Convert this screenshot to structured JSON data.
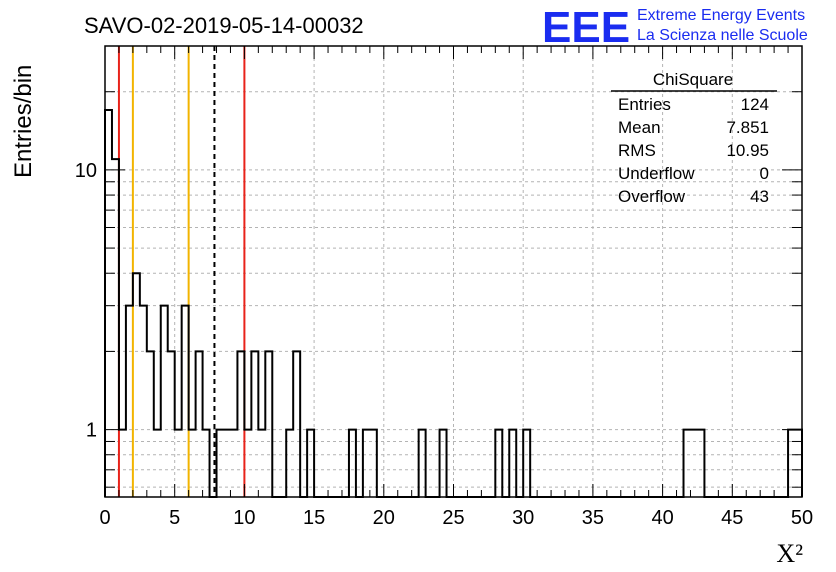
{
  "chart_data": {
    "type": "histogram",
    "title": "SAVO-02-2019-05-14-00032",
    "xlabel": "X²",
    "ylabel": "Entries/bin",
    "xlim": [
      0,
      50
    ],
    "ylim": [
      0.55,
      30
    ],
    "yscale": "log",
    "grid": true,
    "bin_width": 0.5,
    "x_ticks": [
      0,
      5,
      10,
      15,
      20,
      25,
      30,
      35,
      40,
      45,
      50
    ],
    "y_ticks": [
      1,
      10
    ],
    "bins": [
      {
        "x": 0.0,
        "count": 17
      },
      {
        "x": 0.5,
        "count": 11
      },
      {
        "x": 1.0,
        "count": 1
      },
      {
        "x": 1.5,
        "count": 3
      },
      {
        "x": 2.0,
        "count": 4
      },
      {
        "x": 2.5,
        "count": 3
      },
      {
        "x": 3.0,
        "count": 2
      },
      {
        "x": 3.5,
        "count": 1
      },
      {
        "x": 4.0,
        "count": 3
      },
      {
        "x": 4.5,
        "count": 2
      },
      {
        "x": 5.0,
        "count": 1
      },
      {
        "x": 5.5,
        "count": 3
      },
      {
        "x": 6.0,
        "count": 1
      },
      {
        "x": 6.5,
        "count": 2
      },
      {
        "x": 7.0,
        "count": 1
      },
      {
        "x": 7.5,
        "count": 0
      },
      {
        "x": 8.0,
        "count": 1
      },
      {
        "x": 8.5,
        "count": 1
      },
      {
        "x": 9.0,
        "count": 1
      },
      {
        "x": 9.5,
        "count": 2
      },
      {
        "x": 10.0,
        "count": 1
      },
      {
        "x": 10.5,
        "count": 2
      },
      {
        "x": 11.0,
        "count": 1
      },
      {
        "x": 11.5,
        "count": 2
      },
      {
        "x": 12.0,
        "count": 0
      },
      {
        "x": 12.5,
        "count": 0
      },
      {
        "x": 13.0,
        "count": 1
      },
      {
        "x": 13.5,
        "count": 2
      },
      {
        "x": 14.0,
        "count": 0
      },
      {
        "x": 14.5,
        "count": 1
      },
      {
        "x": 17.5,
        "count": 1
      },
      {
        "x": 18.5,
        "count": 1
      },
      {
        "x": 19.0,
        "count": 1
      },
      {
        "x": 22.5,
        "count": 1
      },
      {
        "x": 24.0,
        "count": 1
      },
      {
        "x": 28.0,
        "count": 1
      },
      {
        "x": 29.0,
        "count": 1
      },
      {
        "x": 30.0,
        "count": 1
      },
      {
        "x": 41.5,
        "count": 1
      },
      {
        "x": 42.0,
        "count": 1
      },
      {
        "x": 42.5,
        "count": 1
      },
      {
        "x": 49.0,
        "count": 1
      },
      {
        "x": 49.5,
        "count": 1
      }
    ],
    "vertical_lines": [
      {
        "x": 1.0,
        "color": "#e8231a",
        "style": "solid"
      },
      {
        "x": 2.0,
        "color": "#f2b400",
        "style": "solid"
      },
      {
        "x": 6.0,
        "color": "#f2b400",
        "style": "solid"
      },
      {
        "x": 7.851,
        "color": "#000000",
        "style": "dashed"
      },
      {
        "x": 10.0,
        "color": "#e8231a",
        "style": "solid"
      }
    ],
    "stats_box": {
      "title": "ChiSquare",
      "rows": [
        {
          "label": "Entries",
          "value": "124"
        },
        {
          "label": "Mean",
          "value": "7.851"
        },
        {
          "label": "RMS",
          "value": "10.95"
        },
        {
          "label": "Underflow",
          "value": "0"
        },
        {
          "label": "Overflow",
          "value": "43"
        }
      ]
    }
  },
  "logo": {
    "mark": "EEE",
    "line1": "Extreme Energy Events",
    "line2": "La Scienza nelle Scuole"
  }
}
